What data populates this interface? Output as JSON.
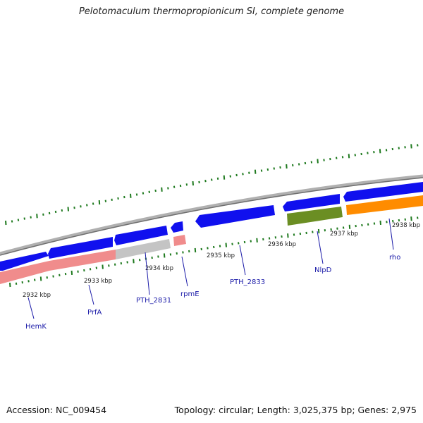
{
  "title": "Pelotomaculum thermopropionicum SI, complete genome",
  "footer": {
    "accession": "Accession: NC_009454",
    "summary": "Topology: circular; Length: 3,025,375 bp; Genes: 2,975"
  },
  "colors": {
    "backbone": "#8a8a8a",
    "tick": "#1f7a1f",
    "gene_blue": "#1010ee",
    "gene_pink": "#f08c8c",
    "gene_grey": "#bdbdbd",
    "gene_olive": "#6b8e23",
    "gene_orange": "#ff8c00",
    "label": "#1a1aa8"
  },
  "scale": {
    "ticks": [
      "2932 kbp",
      "2933 kbp",
      "2934 kbp",
      "2935 kbp",
      "2936 kbp",
      "2937 kbp",
      "2938 kbp"
    ]
  },
  "gene_labels": [
    "HemK",
    "PrfA",
    "PTH_2831",
    "rpmE",
    "PTH_2833",
    "NlpD",
    "rho"
  ]
}
